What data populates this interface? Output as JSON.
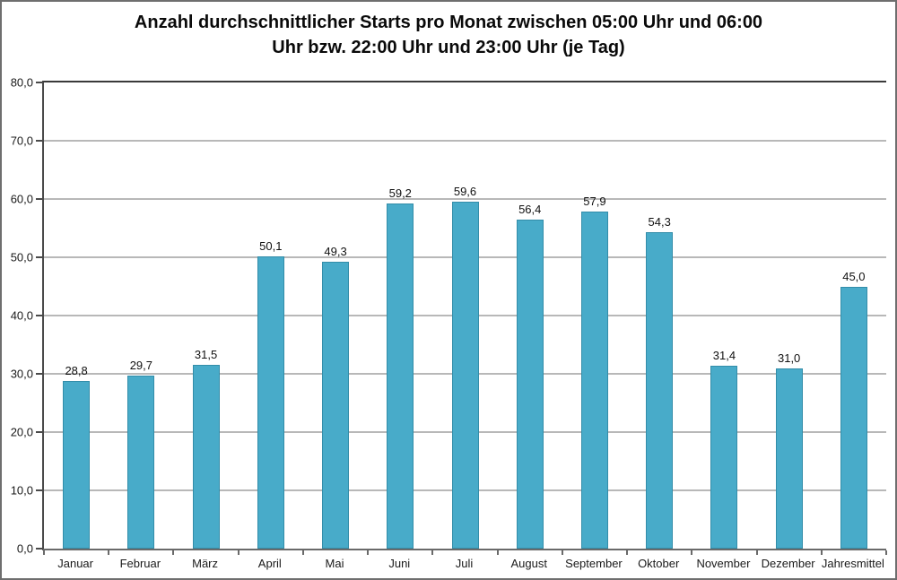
{
  "title": {
    "line1": "Anzahl durchschnittlicher Starts pro Monat zwischen 05:00 Uhr und 06:00",
    "line2": "Uhr bzw. 22:00 Uhr und 23:00 Uhr (je Tag)"
  },
  "colors": {
    "bar_fill": "#48ABC9",
    "bar_border": "#338DA9",
    "gridline": "#b8b8b8",
    "axis": "#4a4a4a",
    "title_text": "#0a0a0a",
    "frame_border": "#6e6e6e"
  },
  "chart_data": {
    "type": "bar",
    "title": "Anzahl durchschnittlicher Starts pro Monat zwischen 05:00 Uhr und 06:00 Uhr bzw. 22:00 Uhr und 23:00 Uhr (je Tag)",
    "categories": [
      "Januar",
      "Februar",
      "März",
      "April",
      "Mai",
      "Juni",
      "Juli",
      "August",
      "September",
      "Oktober",
      "November",
      "Dezember",
      "Jahresmittel"
    ],
    "values": [
      28.8,
      29.7,
      31.5,
      50.1,
      49.3,
      59.2,
      59.6,
      56.4,
      57.9,
      54.3,
      31.4,
      31.0,
      45.0
    ],
    "value_labels": [
      "28,8",
      "29,7",
      "31,5",
      "50,1",
      "49,3",
      "59,2",
      "59,6",
      "56,4",
      "57,9",
      "54,3",
      "31,4",
      "31,0",
      "45,0"
    ],
    "xlabel": "",
    "ylabel": "",
    "ylim": [
      0,
      80
    ],
    "y_tick_values": [
      0,
      10,
      20,
      30,
      40,
      50,
      60,
      70,
      80
    ],
    "y_tick_labels": [
      "0,0",
      "10,0",
      "20,0",
      "30,0",
      "40,0",
      "50,0",
      "60,0",
      "70,0",
      "80,0"
    ],
    "grid": true,
    "legend": false,
    "bar_color": "#48ABC9"
  }
}
